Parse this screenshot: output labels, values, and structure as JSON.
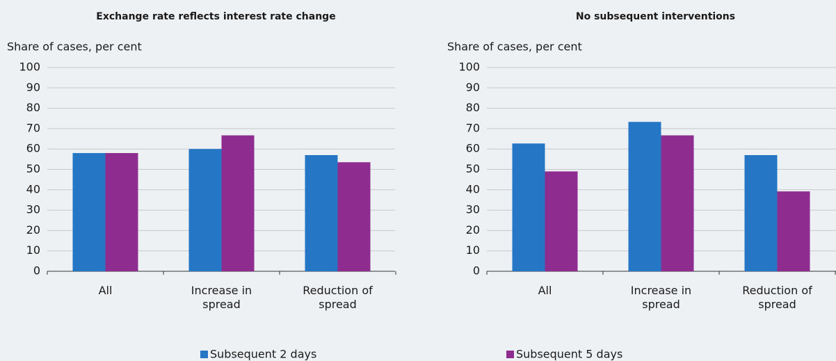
{
  "chart_data": [
    {
      "type": "bar",
      "title": "Exchange rate reflects interest rate change",
      "y_label": "Share of cases, per cent",
      "categories": [
        "All",
        "Increase in spread",
        "Reduction of spread"
      ],
      "series": [
        {
          "name": "Subsequent 2 days",
          "color": "#2577c5",
          "values": [
            58,
            60,
            57
          ]
        },
        {
          "name": "Subsequent 5 days",
          "color": "#8e2c90",
          "values": [
            58,
            66.7,
            53.5
          ]
        }
      ],
      "ylim": [
        0,
        100
      ],
      "yticks": [
        0,
        10,
        20,
        30,
        40,
        50,
        60,
        70,
        80,
        90,
        100
      ],
      "grid": true
    },
    {
      "type": "bar",
      "title": "No subsequent interventions",
      "y_label": "Share of cases, per cent",
      "categories": [
        "All",
        "Increase in spread",
        "Reduction of spread"
      ],
      "series": [
        {
          "name": "Subsequent 2 days",
          "color": "#2577c5",
          "values": [
            62.7,
            73.3,
            57
          ]
        },
        {
          "name": "Subsequent 5 days",
          "color": "#8e2c90",
          "values": [
            49,
            66.7,
            39.2
          ]
        }
      ],
      "ylim": [
        0,
        100
      ],
      "yticks": [
        0,
        10,
        20,
        30,
        40,
        50,
        60,
        70,
        80,
        90,
        100
      ],
      "grid": true
    }
  ]
}
